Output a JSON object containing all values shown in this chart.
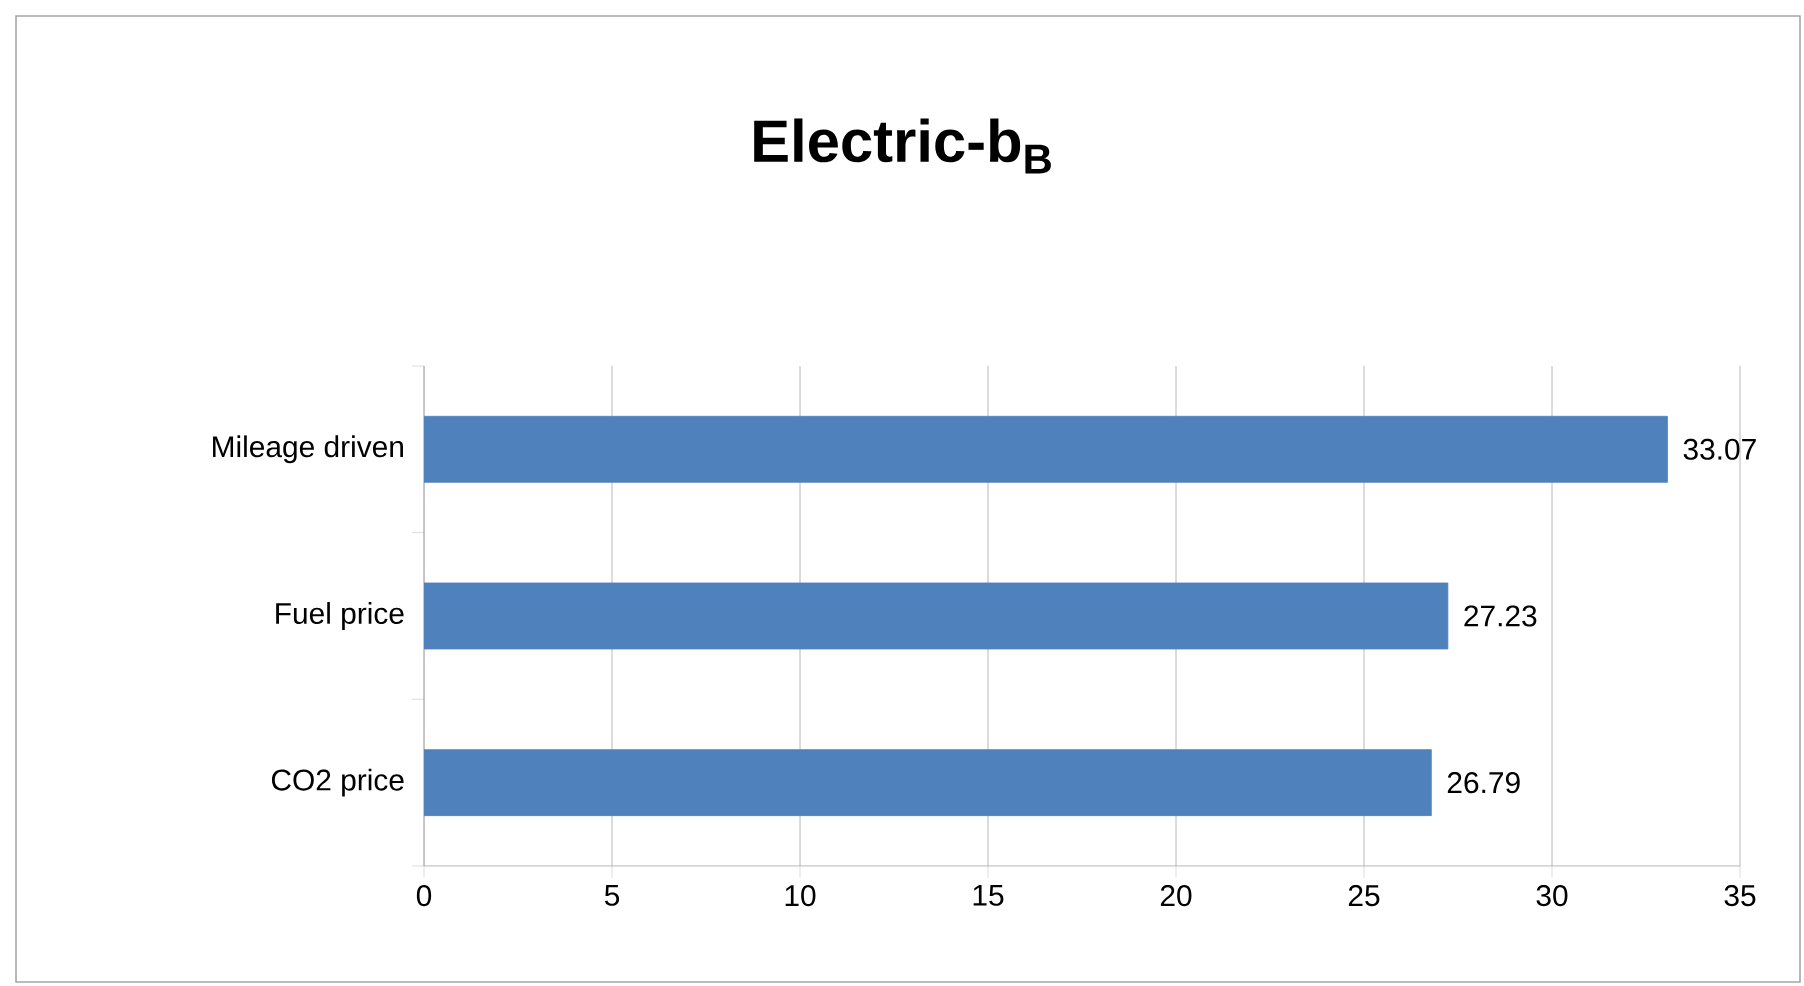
{
  "chart_data": {
    "type": "bar",
    "orientation": "horizontal",
    "title": "Electric-b$_{B}$",
    "categories": [
      "Mileage driven",
      "Fuel price",
      "CO2 price"
    ],
    "values": [
      33.07,
      27.23,
      26.79
    ],
    "color": "#4f81bd",
    "xlim": [
      0,
      35
    ],
    "xticks": [
      0,
      5,
      10,
      15,
      20,
      25,
      30,
      35
    ],
    "grid": "x",
    "data_labels": true
  }
}
